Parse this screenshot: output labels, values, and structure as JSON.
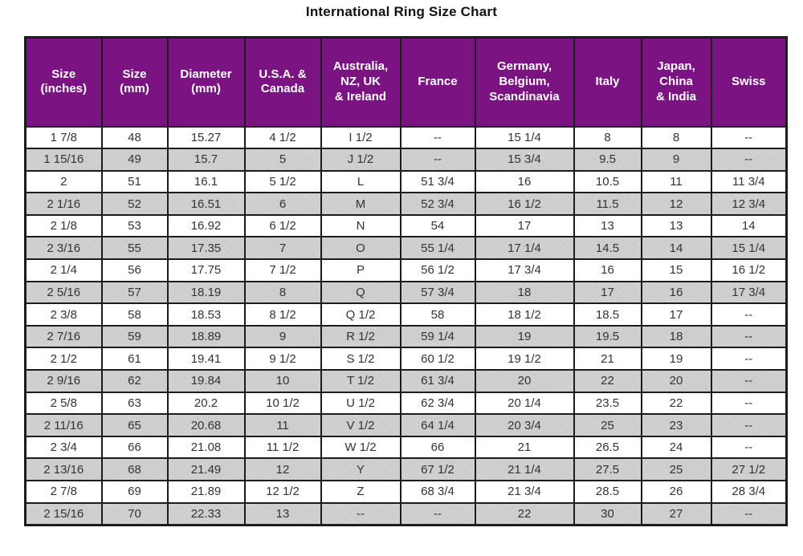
{
  "title": "International Ring Size Chart",
  "colors": {
    "header_bg": "#7c1383",
    "header_text": "#ffffff",
    "row_bg": "#ffffff",
    "row_alt_bg": "#cbcbcb",
    "border": "#1c1c1c",
    "cell_text": "#333333"
  },
  "table": {
    "headers": [
      "Size\n(inches)",
      "Size\n(mm)",
      "Diameter\n(mm)",
      "U.S.A. &\nCanada",
      "Australia,\nNZ, UK\n& Ireland",
      "France",
      "Germany,\nBelgium,\nScandinavia",
      "Italy",
      "Japan,\nChina\n& India",
      "Swiss"
    ]
  },
  "chart_data": {
    "type": "table",
    "title": "International Ring Size Chart",
    "columns": [
      "Size (inches)",
      "Size (mm)",
      "Diameter (mm)",
      "U.S.A. & Canada",
      "Australia, NZ, UK & Ireland",
      "France",
      "Germany, Belgium, Scandinavia",
      "Italy",
      "Japan, China & India",
      "Swiss"
    ],
    "rows": [
      [
        "1 7/8",
        "48",
        "15.27",
        "4 1/2",
        "I 1/2",
        "--",
        "15 1/4",
        "8",
        "8",
        "--"
      ],
      [
        "1 15/16",
        "49",
        "15.7",
        "5",
        "J 1/2",
        "--",
        "15 3/4",
        "9.5",
        "9",
        "--"
      ],
      [
        "2",
        "51",
        "16.1",
        "5 1/2",
        "L",
        "51 3/4",
        "16",
        "10.5",
        "11",
        "11 3/4"
      ],
      [
        "2 1/16",
        "52",
        "16.51",
        "6",
        "M",
        "52 3/4",
        "16 1/2",
        "11.5",
        "12",
        "12 3/4"
      ],
      [
        "2 1/8",
        "53",
        "16.92",
        "6 1/2",
        "N",
        "54",
        "17",
        "13",
        "13",
        "14"
      ],
      [
        "2 3/16",
        "55",
        "17.35",
        "7",
        "O",
        "55 1/4",
        "17 1/4",
        "14.5",
        "14",
        "15 1/4"
      ],
      [
        "2 1/4",
        "56",
        "17.75",
        "7 1/2",
        "P",
        "56 1/2",
        "17 3/4",
        "16",
        "15",
        "16 1/2"
      ],
      [
        "2 5/16",
        "57",
        "18.19",
        "8",
        "Q",
        "57 3/4",
        "18",
        "17",
        "16",
        "17 3/4"
      ],
      [
        "2 3/8",
        "58",
        "18.53",
        "8 1/2",
        "Q 1/2",
        "58",
        "18 1/2",
        "18.5",
        "17",
        "--"
      ],
      [
        "2 7/16",
        "59",
        "18.89",
        "9",
        "R 1/2",
        "59 1/4",
        "19",
        "19.5",
        "18",
        "--"
      ],
      [
        "2 1/2",
        "61",
        "19.41",
        "9 1/2",
        "S 1/2",
        "60 1/2",
        "19 1/2",
        "21",
        "19",
        "--"
      ],
      [
        "2 9/16",
        "62",
        "19.84",
        "10",
        "T 1/2",
        "61 3/4",
        "20",
        "22",
        "20",
        "--"
      ],
      [
        "2 5/8",
        "63",
        "20.2",
        "10 1/2",
        "U 1/2",
        "62 3/4",
        "20 1/4",
        "23.5",
        "22",
        "--"
      ],
      [
        "2 11/16",
        "65",
        "20.68",
        "11",
        "V 1/2",
        "64 1/4",
        "20 3/4",
        "25",
        "23",
        "--"
      ],
      [
        "2 3/4",
        "66",
        "21.08",
        "11 1/2",
        "W 1/2",
        "66",
        "21",
        "26.5",
        "24",
        "--"
      ],
      [
        "2 13/16",
        "68",
        "21.49",
        "12",
        "Y",
        "67 1/2",
        "21 1/4",
        "27.5",
        "25",
        "27 1/2"
      ],
      [
        "2 7/8",
        "69",
        "21.89",
        "12 1/2",
        "Z",
        "68 3/4",
        "21 3/4",
        "28.5",
        "26",
        "28 3/4"
      ],
      [
        "2 15/16",
        "70",
        "22.33",
        "13",
        "--",
        "--",
        "22",
        "30",
        "27",
        "--"
      ]
    ]
  }
}
